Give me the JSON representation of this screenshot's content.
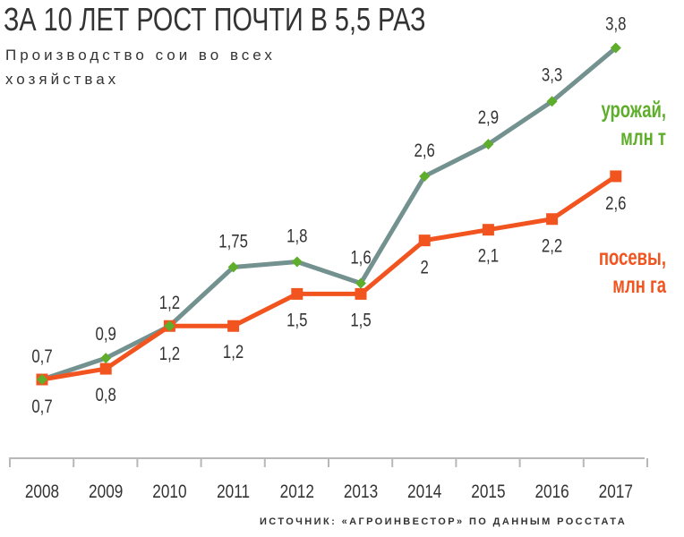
{
  "title": "ЗА 10 ЛЕТ РОСТ ПОЧТИ В 5,5 РАЗ",
  "subtitle": "Производство сои во всех хозяйствах",
  "source": "ИСТОЧНИК: «АГРОИНВЕСТОР» ПО ДАННЫМ РОССТАТА",
  "chart_data": {
    "type": "line",
    "x": [
      "2008",
      "2009",
      "2010",
      "2011",
      "2012",
      "2013",
      "2014",
      "2015",
      "2016",
      "2017"
    ],
    "series": [
      {
        "name": "урожай, млн т",
        "legend_lines": [
          "урожай,",
          "млн т"
        ],
        "values": [
          0.7,
          0.9,
          1.2,
          1.75,
          1.8,
          1.6,
          2.6,
          2.9,
          3.3,
          3.8
        ],
        "labels": [
          "0,7",
          "0,9",
          "1,2",
          "1,75",
          "1,8",
          "1,6",
          "2,6",
          "2,9",
          "3,3",
          "3,8"
        ],
        "line_color": "#73918f",
        "marker_color": "#5fae2b",
        "marker": "diamond",
        "legend_color": "#5fae2b"
      },
      {
        "name": "посевы, млн га",
        "legend_lines": [
          "посевы,",
          "млн га"
        ],
        "values": [
          0.7,
          0.8,
          1.2,
          1.2,
          1.5,
          1.5,
          2.0,
          2.1,
          2.2,
          2.6
        ],
        "labels": [
          "0,7",
          "0,8",
          "1,2",
          "1,2",
          "1,5",
          "1,5",
          "2",
          "2,1",
          "2,2",
          "2,6"
        ],
        "line_color": "#f2541f",
        "marker_color": "#f2541f",
        "marker": "square",
        "legend_color": "#f2541f"
      }
    ],
    "grid": false,
    "legend_placement": "right, next to each line"
  }
}
